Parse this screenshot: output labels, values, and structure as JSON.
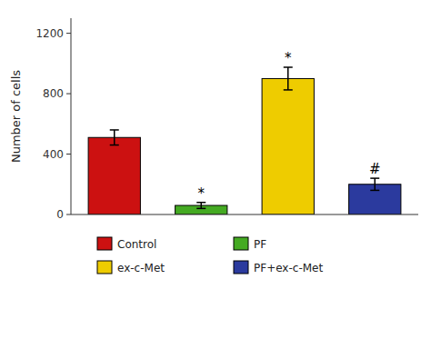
{
  "chart_data": {
    "type": "bar",
    "ylabel": "Number of cells",
    "categories": [
      "Control",
      "PF",
      "ex-c-Met",
      "PF+ex-c-Met"
    ],
    "values": [
      510,
      60,
      900,
      200
    ],
    "errors": [
      50,
      20,
      75,
      40
    ],
    "colors": [
      "#cc1111",
      "#44aa22",
      "#eecc00",
      "#2b3a9e"
    ],
    "annotations": [
      null,
      "*",
      "*",
      "#"
    ],
    "ylim": [
      0,
      1300
    ],
    "yticks": [
      0,
      400,
      800,
      1200
    ],
    "grid": false,
    "legend": "bottom",
    "tick_labels": "y"
  }
}
